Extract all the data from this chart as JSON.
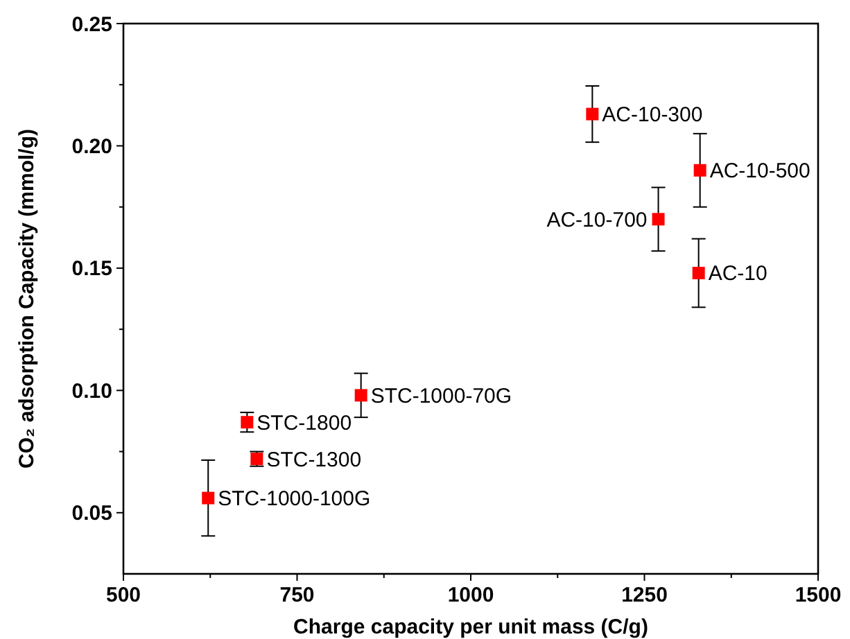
{
  "chart_data": {
    "type": "scatter",
    "xlabel": "Charge capacity per unit mass (C/g)",
    "ylabel": "CO₂ adsorption Capacity (mmol/g)",
    "x": [
      1175,
      1330,
      1270,
      1328,
      842,
      678,
      692,
      622
    ],
    "values": [
      0.213,
      0.19,
      0.17,
      0.148,
      0.098,
      0.087,
      0.072,
      0.056
    ],
    "errors": [
      0.0115,
      0.015,
      0.013,
      0.014,
      0.009,
      0.004,
      0.003,
      0.0155
    ],
    "color": "#ff0000",
    "marker": "square",
    "xlim": [
      500,
      1500
    ],
    "xticks": [
      500,
      {
        "value": 625,
        "label": null
      },
      750,
      {
        "value": 875,
        "label": null
      },
      1000,
      {
        "value": 1125,
        "label": null
      },
      1250,
      {
        "value": 1375,
        "label": null
      },
      1500
    ],
    "ylim": [
      0.025,
      0.25
    ],
    "yticks": [
      {
        "value": 0.05,
        "label": "0.05"
      },
      {
        "value": 0.075,
        "label": null
      },
      {
        "value": 0.1,
        "label": "0.10"
      },
      {
        "value": 0.125,
        "label": null
      },
      {
        "value": 0.15,
        "label": "0.15"
      },
      {
        "value": 0.175,
        "label": null
      },
      {
        "value": 0.2,
        "label": "0.20"
      },
      {
        "value": 0.225,
        "label": null
      },
      {
        "value": 0.25,
        "label": "0.25"
      }
    ],
    "annotations": [
      {
        "text": "AC-10-300",
        "x": 1175,
        "y": 0.213
      },
      {
        "text": "AC-10-500",
        "x": 1330,
        "y": 0.19
      },
      {
        "text": "AC-10-700",
        "x": 1270,
        "y": 0.17
      },
      {
        "text": "AC-10",
        "x": 1328,
        "y": 0.148
      },
      {
        "text": "STC-1000-70G",
        "x": 842,
        "y": 0.098
      },
      {
        "text": "STC-1800",
        "x": 678,
        "y": 0.087
      },
      {
        "text": "STC-1300",
        "x": 692,
        "y": 0.072
      },
      {
        "text": "STC-1000-100G",
        "x": 622,
        "y": 0.056
      }
    ]
  }
}
